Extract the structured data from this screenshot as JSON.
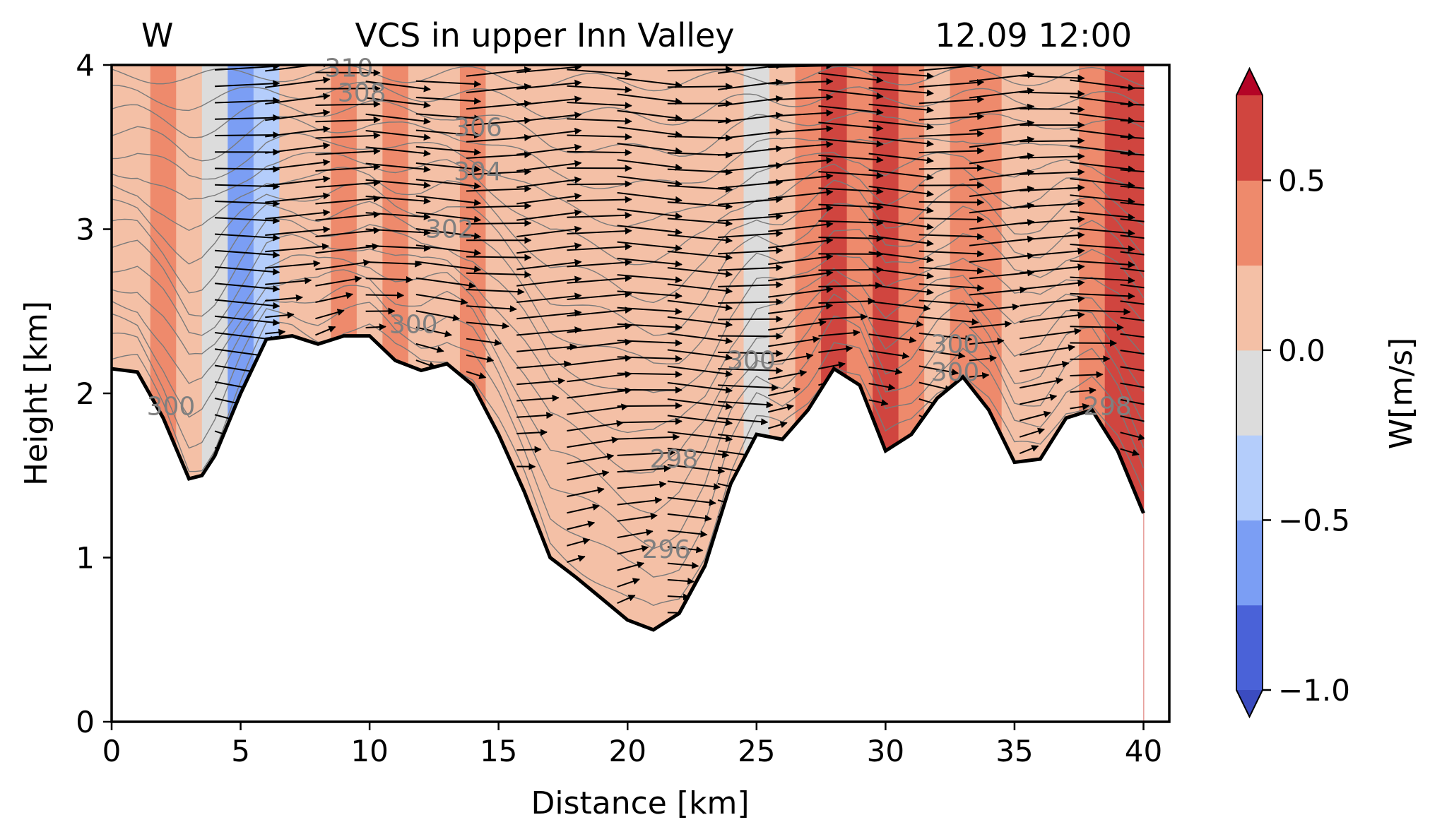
{
  "chart_data": {
    "type": "contour",
    "title_left": "W",
    "title": "VCS in upper Inn Valley",
    "title_right": "12.09 12:00",
    "xlabel": "Distance [km]",
    "ylabel": "Height [km]",
    "xlim": [
      0,
      41
    ],
    "ylim": [
      0,
      4
    ],
    "xticks": [
      "0",
      "5",
      "10",
      "15",
      "20",
      "25",
      "30",
      "35",
      "40"
    ],
    "yticks": [
      "0",
      "1",
      "2",
      "3",
      "4"
    ],
    "colorbar": {
      "label": "W[m/s]",
      "levels": [
        -1.0,
        -0.75,
        -0.5,
        -0.25,
        0.0,
        0.25,
        0.5,
        0.75
      ],
      "ticks": [
        "0.5",
        "0.0",
        "−0.5",
        "−1.0"
      ],
      "tick_values": [
        0.5,
        0.0,
        -0.5,
        -1.0
      ],
      "colors": [
        "#4a62d8",
        "#7b9ef4",
        "#b4cdfb",
        "#dcdcdc",
        "#f4c0a6",
        "#ee8a6c",
        "#d0453f"
      ],
      "extend_low": "#3b4cc0",
      "extend_high": "#b40426"
    },
    "terrain_km": [
      [
        0,
        2.15
      ],
      [
        1,
        2.13
      ],
      [
        2,
        1.85
      ],
      [
        3,
        1.48
      ],
      [
        3.5,
        1.5
      ],
      [
        4,
        1.62
      ],
      [
        5,
        2.0
      ],
      [
        6,
        2.33
      ],
      [
        7,
        2.35
      ],
      [
        8,
        2.3
      ],
      [
        9,
        2.35
      ],
      [
        10,
        2.35
      ],
      [
        11,
        2.2
      ],
      [
        12,
        2.14
      ],
      [
        13,
        2.18
      ],
      [
        14,
        2.05
      ],
      [
        15,
        1.75
      ],
      [
        16,
        1.4
      ],
      [
        17,
        1.0
      ],
      [
        18,
        0.88
      ],
      [
        19,
        0.75
      ],
      [
        20,
        0.62
      ],
      [
        21,
        0.56
      ],
      [
        22,
        0.66
      ],
      [
        23,
        0.95
      ],
      [
        24,
        1.45
      ],
      [
        25,
        1.75
      ],
      [
        26,
        1.72
      ],
      [
        27,
        1.9
      ],
      [
        28,
        2.15
      ],
      [
        29,
        2.05
      ],
      [
        30,
        1.65
      ],
      [
        31,
        1.75
      ],
      [
        32,
        1.97
      ],
      [
        33,
        2.1
      ],
      [
        34,
        1.9
      ],
      [
        35,
        1.58
      ],
      [
        36,
        1.6
      ],
      [
        37,
        1.85
      ],
      [
        38,
        1.9
      ],
      [
        39,
        1.65
      ],
      [
        40,
        1.27
      ]
    ],
    "w_bands": [
      {
        "x": 0,
        "w": 0.0
      },
      {
        "x": 1,
        "w": 0.05
      },
      {
        "x": 2,
        "w": 0.3
      },
      {
        "x": 3,
        "w": 0.0
      },
      {
        "x": 4,
        "w": -0.2
      },
      {
        "x": 5,
        "w": -0.6
      },
      {
        "x": 6,
        "w": -0.3
      },
      {
        "x": 7,
        "w": 0.0
      },
      {
        "x": 8,
        "w": 0.1
      },
      {
        "x": 9,
        "w": 0.3
      },
      {
        "x": 10,
        "w": 0.05
      },
      {
        "x": 11,
        "w": 0.3
      },
      {
        "x": 12,
        "w": 0.1
      },
      {
        "x": 13,
        "w": 0.2
      },
      {
        "x": 14,
        "w": 0.35
      },
      {
        "x": 15,
        "w": 0.05
      },
      {
        "x": 16,
        "w": 0.1
      },
      {
        "x": 17,
        "w": 0.1
      },
      {
        "x": 18,
        "w": 0.1
      },
      {
        "x": 19,
        "w": 0.05
      },
      {
        "x": 20,
        "w": 0.0
      },
      {
        "x": 21,
        "w": 0.1
      },
      {
        "x": 22,
        "w": 0.0
      },
      {
        "x": 23,
        "w": 0.1
      },
      {
        "x": 24,
        "w": 0.0
      },
      {
        "x": 25,
        "w": -0.1
      },
      {
        "x": 26,
        "w": 0.0
      },
      {
        "x": 27,
        "w": 0.3
      },
      {
        "x": 28,
        "w": 0.6
      },
      {
        "x": 29,
        "w": 0.4
      },
      {
        "x": 30,
        "w": 0.55
      },
      {
        "x": 31,
        "w": 0.3
      },
      {
        "x": 32,
        "w": 0.15
      },
      {
        "x": 33,
        "w": 0.35
      },
      {
        "x": 34,
        "w": 0.3
      },
      {
        "x": 35,
        "w": 0.05
      },
      {
        "x": 36,
        "w": 0.0
      },
      {
        "x": 37,
        "w": 0.2
      },
      {
        "x": 38,
        "w": 0.35
      },
      {
        "x": 39,
        "w": 0.55
      },
      {
        "x": 40,
        "w": 0.5
      }
    ],
    "theta_labels": [
      {
        "text": "310",
        "x": 9.2,
        "y": 3.98
      },
      {
        "text": "308",
        "x": 9.7,
        "y": 3.83
      },
      {
        "text": "306",
        "x": 14.2,
        "y": 3.62
      },
      {
        "text": "304",
        "x": 14.2,
        "y": 3.35
      },
      {
        "text": "302",
        "x": 13.1,
        "y": 3.0
      },
      {
        "text": "300",
        "x": 11.7,
        "y": 2.42
      },
      {
        "text": "300",
        "x": 2.3,
        "y": 1.92
      },
      {
        "text": "300",
        "x": 24.8,
        "y": 2.2
      },
      {
        "text": "300",
        "x": 32.7,
        "y": 2.3
      },
      {
        "text": "300",
        "x": 32.7,
        "y": 2.13
      },
      {
        "text": "298",
        "x": 21.8,
        "y": 1.6
      },
      {
        "text": "298",
        "x": 38.6,
        "y": 1.92
      },
      {
        "text": "296",
        "x": 21.5,
        "y": 1.05
      }
    ],
    "theta_levels": [
      296,
      298,
      300,
      302,
      304,
      306,
      308,
      310
    ]
  }
}
